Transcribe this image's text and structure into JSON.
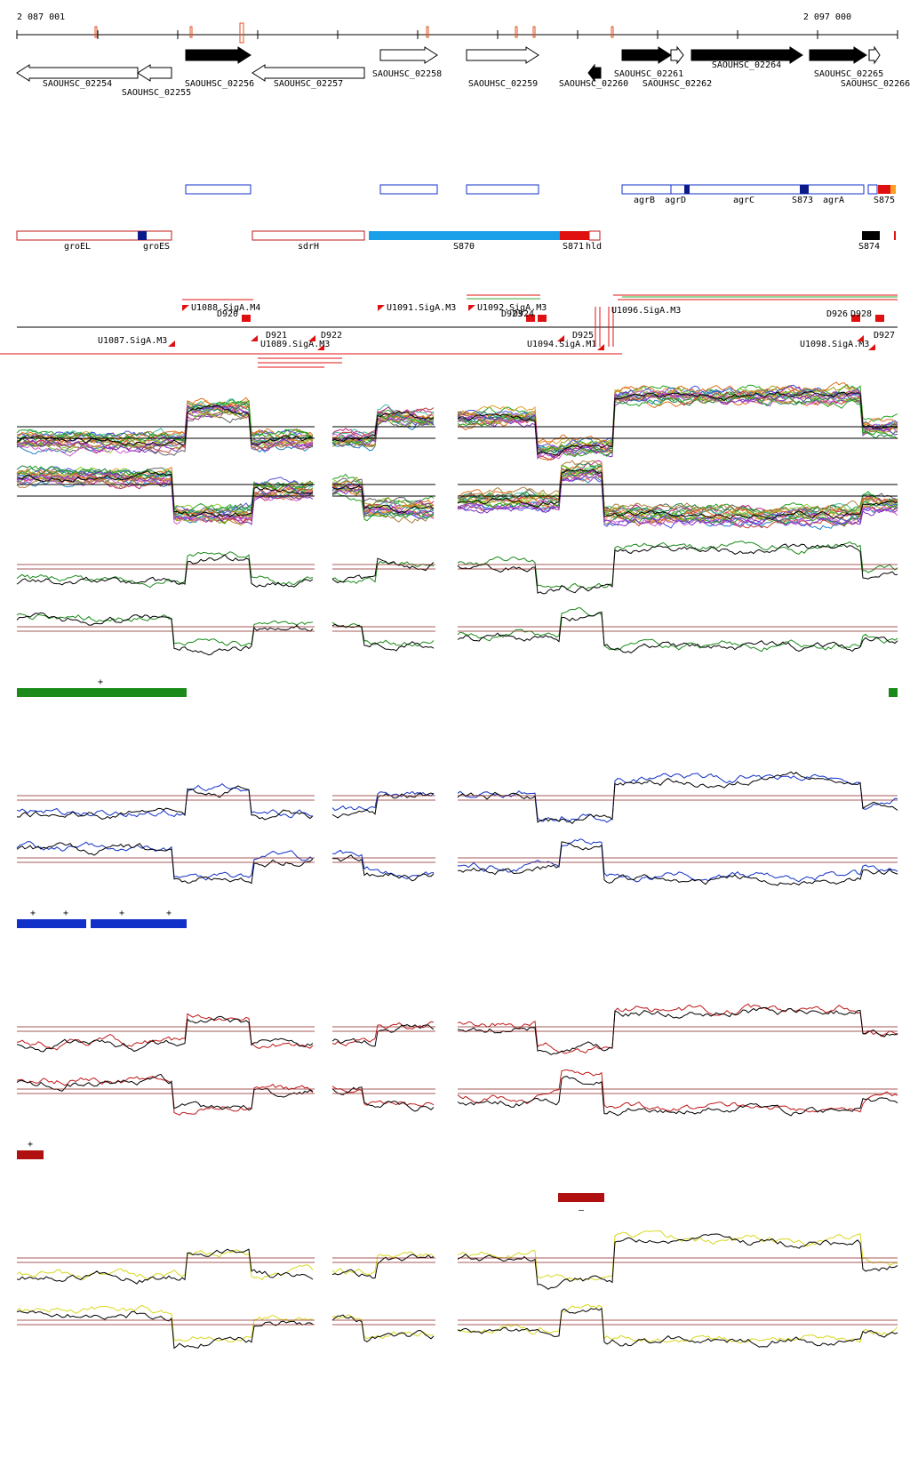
{
  "ruler": {
    "start_label": "2 087 001",
    "end_label": "2 097 000",
    "start": 2087001,
    "end": 2097000
  },
  "genes": [
    {
      "name": "SAOUHSC_02254",
      "strand": "-",
      "filled": false
    },
    {
      "name": "SAOUHSC_02255",
      "strand": "-",
      "filled": false
    },
    {
      "name": "SAOUHSC_02256",
      "strand": "+",
      "filled": true
    },
    {
      "name": "SAOUHSC_02257",
      "strand": "-",
      "filled": false
    },
    {
      "name": "SAOUHSC_02258",
      "strand": "+",
      "filled": false
    },
    {
      "name": "SAOUHSC_02259",
      "strand": "+",
      "filled": false
    },
    {
      "name": "SAOUHSC_02260",
      "strand": "-",
      "filled": true
    },
    {
      "name": "SAOUHSC_02261",
      "strand": "+",
      "filled": true
    },
    {
      "name": "SAOUHSC_02262",
      "strand": "+",
      "filled": false
    },
    {
      "name": "SAOUHSC_02264",
      "strand": "+",
      "filled": true
    },
    {
      "name": "SAOUHSC_02265",
      "strand": "+",
      "filled": true
    },
    {
      "name": "SAOUHSC_02266",
      "strand": "+",
      "filled": false
    }
  ],
  "features_blue": [
    "agrB",
    "agrD",
    "agrC",
    "S873",
    "agrA",
    "S875"
  ],
  "features_red": [
    "groEL",
    "groES",
    "sdrH",
    "S870",
    "S871",
    "hld",
    "S874"
  ],
  "promoters_upper": [
    "U1088.SigA.M4",
    "D920",
    "U1091.SigA.M3",
    "U1092.SigA.M3",
    "D923",
    "D924",
    "D926",
    "D928"
  ],
  "promoters_lower": [
    "U1087.SigA.M3",
    "D921",
    "U1089.SigA.M3",
    "D922",
    "D925",
    "U1094.SigA.M1",
    "U1098.SigA.M3",
    "D927"
  ],
  "segment_markers": {
    "green": "+",
    "blue": "+",
    "red": "+",
    "darkred": "–"
  },
  "colors": {
    "green": "#1a8a1a",
    "blue": "#1030c8",
    "red": "#c01818",
    "yellow": "#d8d820",
    "darkred": "#b01010",
    "cyan": "#1aa0e8"
  }
}
